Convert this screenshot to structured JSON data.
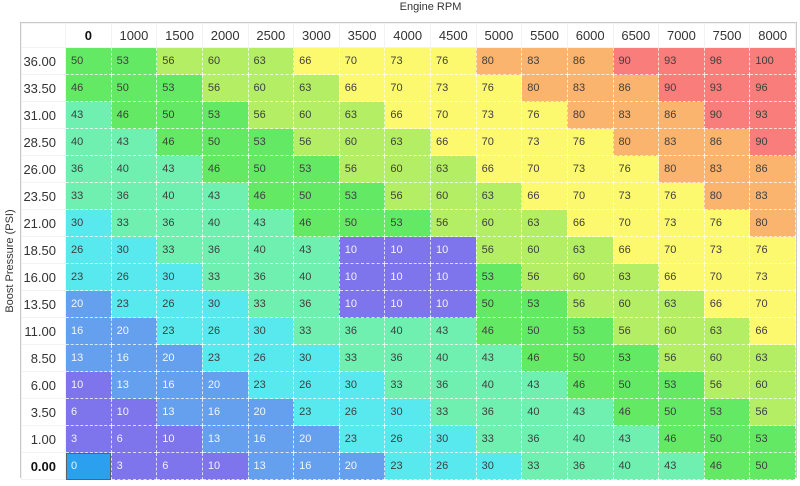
{
  "axes": {
    "x_title": "Engine RPM",
    "y_title": "Boost Pressure (PSI)"
  },
  "grid": {
    "column_headers": [
      "0",
      "1000",
      "1500",
      "2000",
      "2500",
      "3000",
      "3500",
      "4000",
      "4500",
      "5000",
      "5500",
      "6000",
      "6500",
      "7000",
      "7500",
      "8000"
    ],
    "rows": [
      {
        "label": "36.00",
        "values": [
          50,
          53,
          56,
          60,
          63,
          66,
          70,
          73,
          76,
          80,
          83,
          86,
          90,
          93,
          96,
          100
        ]
      },
      {
        "label": "33.50",
        "values": [
          46,
          50,
          53,
          56,
          60,
          63,
          66,
          70,
          73,
          76,
          80,
          83,
          86,
          90,
          93,
          96
        ]
      },
      {
        "label": "31.00",
        "values": [
          43,
          46,
          50,
          53,
          56,
          60,
          63,
          66,
          70,
          73,
          76,
          80,
          83,
          86,
          90,
          93
        ]
      },
      {
        "label": "28.50",
        "values": [
          40,
          43,
          46,
          50,
          53,
          56,
          60,
          63,
          66,
          70,
          73,
          76,
          80,
          83,
          86,
          90
        ]
      },
      {
        "label": "26.00",
        "values": [
          36,
          40,
          43,
          46,
          50,
          53,
          56,
          60,
          63,
          66,
          70,
          73,
          76,
          80,
          83,
          86
        ]
      },
      {
        "label": "23.50",
        "values": [
          33,
          36,
          40,
          43,
          46,
          50,
          53,
          56,
          60,
          63,
          66,
          70,
          73,
          76,
          80,
          83
        ]
      },
      {
        "label": "21.00",
        "values": [
          30,
          33,
          36,
          40,
          43,
          46,
          50,
          53,
          56,
          60,
          63,
          66,
          70,
          73,
          76,
          80
        ]
      },
      {
        "label": "18.50",
        "values": [
          26,
          30,
          33,
          36,
          40,
          43,
          10,
          10,
          10,
          56,
          60,
          63,
          66,
          70,
          73,
          76
        ]
      },
      {
        "label": "16.00",
        "values": [
          23,
          26,
          30,
          33,
          36,
          40,
          10,
          10,
          10,
          53,
          56,
          60,
          63,
          66,
          70,
          73
        ]
      },
      {
        "label": "13.50",
        "values": [
          20,
          23,
          26,
          30,
          33,
          36,
          10,
          10,
          10,
          50,
          53,
          56,
          60,
          63,
          66,
          70
        ]
      },
      {
        "label": "11.00",
        "values": [
          16,
          20,
          23,
          26,
          30,
          33,
          36,
          40,
          43,
          46,
          50,
          53,
          56,
          60,
          63,
          66
        ]
      },
      {
        "label": "8.50",
        "values": [
          13,
          16,
          20,
          23,
          26,
          30,
          33,
          36,
          40,
          43,
          46,
          50,
          53,
          56,
          60,
          63
        ]
      },
      {
        "label": "6.00",
        "values": [
          10,
          13,
          16,
          20,
          23,
          26,
          30,
          33,
          36,
          40,
          43,
          46,
          50,
          53,
          56,
          60
        ]
      },
      {
        "label": "3.50",
        "values": [
          6,
          10,
          13,
          16,
          20,
          23,
          26,
          30,
          33,
          36,
          40,
          43,
          46,
          50,
          53,
          56
        ]
      },
      {
        "label": "1.00",
        "values": [
          3,
          6,
          10,
          13,
          16,
          20,
          23,
          26,
          30,
          33,
          36,
          40,
          43,
          46,
          50,
          53
        ]
      },
      {
        "label": "0.00",
        "values": [
          0,
          3,
          6,
          10,
          13,
          16,
          20,
          23,
          26,
          30,
          33,
          36,
          40,
          43,
          46,
          50
        ]
      }
    ],
    "focused": {
      "row": "0.00",
      "column": "0",
      "value": 0
    },
    "selection": {
      "rows": [
        "18.50",
        "16.00",
        "13.50"
      ],
      "columns": [
        "3500",
        "4000",
        "4500"
      ],
      "value": 10
    }
  },
  "style": {
    "value_colors": {
      "0": "#2aa0ee",
      "3": "#7e74ec",
      "6": "#7e74ec",
      "10": "#7e74ec",
      "13": "#64a0ee",
      "16": "#64a0ee",
      "20": "#64a0ee",
      "23": "#58e9ef",
      "26": "#58e9ef",
      "30": "#58e9ef",
      "33": "#6ff0b0",
      "36": "#6ff0b0",
      "40": "#6ff0b0",
      "43": "#6ff0b0",
      "46": "#64e964",
      "50": "#64e964",
      "53": "#64e964",
      "56": "#b3ee64",
      "60": "#b3ee64",
      "63": "#b3ee64",
      "66": "#fdf96e",
      "70": "#fdf96e",
      "73": "#fdf96e",
      "76": "#fdf96e",
      "80": "#fbb46e",
      "83": "#fbb46e",
      "86": "#fbb46e",
      "90": "#f97d7a",
      "93": "#f97d7a",
      "96": "#f97d7a",
      "100": "#f97d7a"
    },
    "light_text_threshold": 20,
    "light_text": "rgba(255,255,255,0.9)",
    "dark_text": "#3f3f3f",
    "focused_border": "#5d6166",
    "table_border": "#c9c9c9"
  }
}
